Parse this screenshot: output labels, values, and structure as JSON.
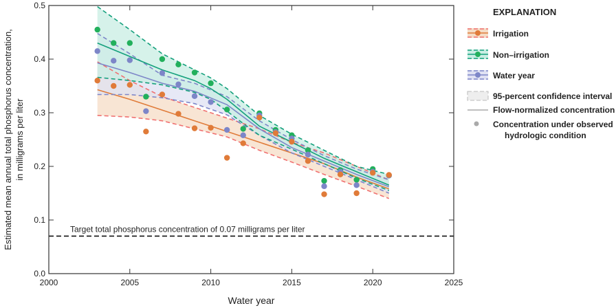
{
  "chart_data": {
    "type": "line",
    "xlabel": "Water year",
    "ylabel": [
      "Estimated mean annual total phosphorus concentration,",
      "in milligrams per liter"
    ],
    "xlim": [
      2000,
      2025
    ],
    "ylim": [
      0,
      0.5
    ],
    "xticks": [
      "2000",
      "2005",
      "2010",
      "2015",
      "2020",
      "2025"
    ],
    "yticks": [
      "0.0",
      "0.1",
      "0.2",
      "0.3",
      "0.4",
      "0.5"
    ],
    "grid": false,
    "legend": {
      "title": "EXPLANATION",
      "placement": "right",
      "items": [
        "Irrigation",
        "Non–irrigation",
        "Water year",
        "95-percent confidence interval",
        "Flow-normalized concentration",
        "Concentration under observed",
        "hydrologic condition"
      ]
    },
    "reference_line": {
      "value": 0.07,
      "label": "Target total phosphorus concentration of 0.07 milligrams per liter"
    },
    "series": [
      {
        "name": "Irrigation",
        "line_color": "#e07b39",
        "ci_color": "#f07070",
        "fill": "#f5dcc5",
        "points_x": [
          2003,
          2004,
          2005,
          2006,
          2007,
          2008,
          2009,
          2010,
          2011,
          2012,
          2013,
          2014,
          2015,
          2016,
          2017,
          2018,
          2019,
          2020,
          2021
        ],
        "points_y": [
          0.36,
          0.35,
          0.352,
          0.265,
          0.334,
          0.298,
          0.271,
          0.272,
          0.216,
          0.243,
          0.291,
          0.262,
          0.246,
          0.21,
          0.148,
          0.185,
          0.15,
          0.188,
          0.184
        ],
        "fn_x": [
          2003,
          2005,
          2007,
          2009,
          2011,
          2013,
          2015,
          2017,
          2019,
          2021
        ],
        "fn_y": [
          0.343,
          0.325,
          0.305,
          0.285,
          0.265,
          0.245,
          0.225,
          0.205,
          0.18,
          0.158
        ],
        "ci_upper": [
          0.395,
          0.36,
          0.33,
          0.31,
          0.29,
          0.27,
          0.245,
          0.225,
          0.2,
          0.175
        ],
        "ci_lower": [
          0.295,
          0.292,
          0.285,
          0.27,
          0.255,
          0.23,
          0.208,
          0.185,
          0.163,
          0.14
        ]
      },
      {
        "name": "Water year",
        "line_color": "#7d86c8",
        "ci_color": "#7d86c8",
        "fill": "#dfe1f3",
        "points_x": [
          2003,
          2004,
          2005,
          2006,
          2007,
          2008,
          2009,
          2010,
          2011,
          2012,
          2013,
          2014,
          2015,
          2016,
          2017,
          2018,
          2019,
          2020,
          2021
        ],
        "points_y": [
          0.415,
          0.397,
          0.398,
          0.303,
          0.374,
          0.353,
          0.331,
          0.32,
          0.268,
          0.258,
          0.295,
          0.264,
          0.252,
          0.222,
          0.163,
          0.19,
          0.165,
          0.19,
          0.183
        ],
        "fn_x": [
          2003,
          2005,
          2007,
          2009,
          2011,
          2013,
          2015,
          2017,
          2019,
          2021
        ],
        "fn_y": [
          0.393,
          0.375,
          0.355,
          0.34,
          0.315,
          0.27,
          0.235,
          0.21,
          0.185,
          0.162
        ],
        "ci_upper": [
          0.448,
          0.41,
          0.37,
          0.355,
          0.33,
          0.285,
          0.25,
          0.22,
          0.195,
          0.175
        ],
        "ci_lower": [
          0.334,
          0.334,
          0.328,
          0.317,
          0.296,
          0.258,
          0.225,
          0.2,
          0.175,
          0.15
        ]
      },
      {
        "name": "Non–irrigation",
        "line_color": "#14a07c",
        "ci_color": "#14a07c",
        "fill": "#c8eee3",
        "point_color": "#22b05c",
        "points_x": [
          2003,
          2004,
          2005,
          2006,
          2007,
          2008,
          2009,
          2010,
          2011,
          2012,
          2013,
          2014,
          2015,
          2016,
          2017,
          2018,
          2019,
          2020,
          2021
        ],
        "points_y": [
          0.455,
          0.43,
          0.43,
          0.33,
          0.4,
          0.39,
          0.375,
          0.355,
          0.306,
          0.27,
          0.299,
          0.268,
          0.258,
          0.23,
          0.173,
          0.193,
          0.175,
          0.195,
          0.183
        ],
        "fn_x": [
          2003,
          2005,
          2007,
          2009,
          2010,
          2011,
          2012,
          2013,
          2015,
          2017,
          2019,
          2021
        ],
        "fn_y": [
          0.43,
          0.405,
          0.38,
          0.36,
          0.345,
          0.325,
          0.3,
          0.275,
          0.245,
          0.215,
          0.19,
          0.165
        ],
        "ci_upper": [
          0.498,
          0.455,
          0.41,
          0.38,
          0.365,
          0.345,
          0.32,
          0.295,
          0.26,
          0.23,
          0.2,
          0.185
        ],
        "ci_lower": [
          0.366,
          0.36,
          0.352,
          0.338,
          0.325,
          0.303,
          0.28,
          0.258,
          0.232,
          0.205,
          0.178,
          0.155
        ]
      }
    ]
  }
}
